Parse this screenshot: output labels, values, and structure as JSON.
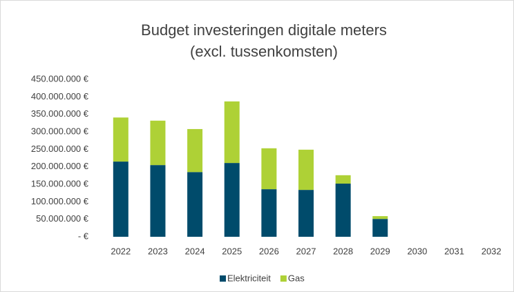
{
  "chart_data": {
    "type": "stacked_bar",
    "title": "Budget investeringen digitale meters",
    "subtitle": "(excl. tussenkomsten)",
    "categories": [
      "2022",
      "2023",
      "2024",
      "2025",
      "2026",
      "2027",
      "2028",
      "2029",
      "2030",
      "2031",
      "2032"
    ],
    "series": [
      {
        "name": "Elektriciteit",
        "color": "#004b6b",
        "values": [
          215000000,
          205000000,
          185000000,
          211000000,
          136000000,
          134000000,
          152000000,
          51000000,
          0,
          0,
          0
        ]
      },
      {
        "name": "Gas",
        "color": "#aed136",
        "values": [
          126000000,
          127000000,
          123000000,
          176000000,
          117000000,
          115000000,
          24000000,
          8000000,
          0,
          0,
          0
        ]
      }
    ],
    "ylim": [
      0,
      450000000
    ],
    "yticks": [
      {
        "value": 0,
        "label": "-   €"
      },
      {
        "value": 50000000,
        "label": "50.000.000 €"
      },
      {
        "value": 100000000,
        "label": "100.000.000 €"
      },
      {
        "value": 150000000,
        "label": "150.000.000 €"
      },
      {
        "value": 200000000,
        "label": "200.000.000 €"
      },
      {
        "value": 250000000,
        "label": "250.000.000 €"
      },
      {
        "value": 300000000,
        "label": "300.000.000 €"
      },
      {
        "value": 350000000,
        "label": "350.000.000 €"
      },
      {
        "value": 400000000,
        "label": "400.000.000 €"
      },
      {
        "value": 450000000,
        "label": "450.000.000 €"
      }
    ],
    "grid": false,
    "legend": "bottom"
  }
}
